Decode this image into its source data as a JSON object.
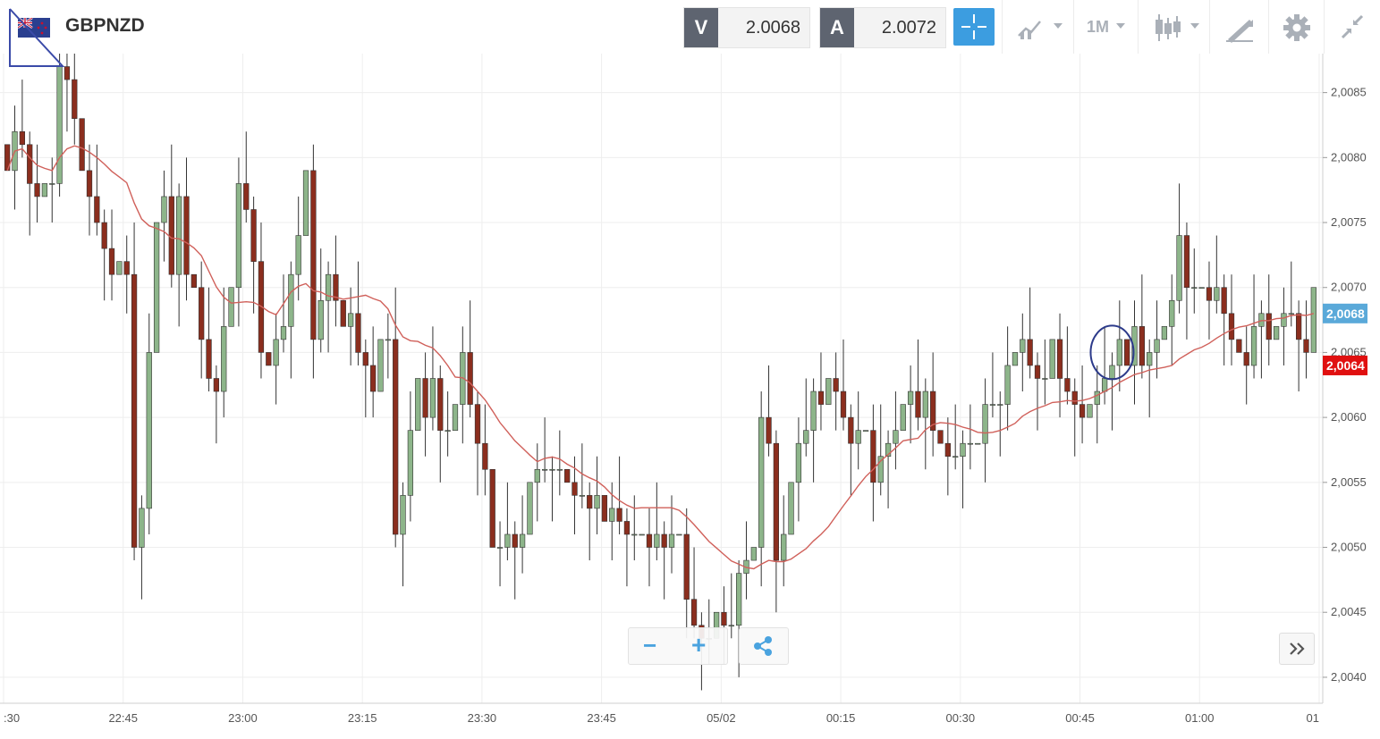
{
  "header": {
    "symbol": "GBPNZD",
    "bid_tag": "V",
    "bid_value": "2.0068",
    "ask_tag": "A",
    "ask_value": "2.0072",
    "timeframe": "1M",
    "accent_color": "#3c9de0"
  },
  "toolbar": {
    "icons": [
      "crosshair-icon",
      "chart-type-icon",
      "timeframe-dropdown",
      "candlestick-icon",
      "drawing-tools-icon",
      "gear-icon",
      "collapse-icon"
    ]
  },
  "chart_data": {
    "type": "candlestick",
    "title": "",
    "xlabel": "",
    "ylabel": "",
    "ylim": [
      2.0038,
      2.0088
    ],
    "grid": true,
    "x_ticks": [
      ":30",
      "22:45",
      "23:00",
      "23:15",
      "23:30",
      "23:45",
      "05/02",
      "00:15",
      "00:30",
      "00:45",
      "01:00",
      "01"
    ],
    "y_ticks": [
      "2,0040",
      "2,0045",
      "2,0050",
      "2,0055",
      "2,0060",
      "2,0065",
      "2,0070",
      "2,0075",
      "2,0080",
      "2,0085"
    ],
    "up_color": "#8db58a",
    "down_color": "#8b2e1e",
    "ma_color": "#d0605a",
    "bid_label": "2,0068",
    "bid_label_color": "#5aa9d9",
    "ma_label": "2,0064",
    "ma_label_color": "#e01010",
    "closes": [
      2.0079,
      2.0082,
      2.0081,
      2.0078,
      2.0077,
      2.0078,
      2.0078,
      2.0087,
      2.0086,
      2.0083,
      2.0079,
      2.0077,
      2.0075,
      2.0073,
      2.0071,
      2.0072,
      2.0071,
      2.005,
      2.0053,
      2.0065,
      2.0075,
      2.0077,
      2.0071,
      2.0077,
      2.0071,
      2.007,
      2.0066,
      2.0063,
      2.0062,
      2.0067,
      2.007,
      2.0078,
      2.0076,
      2.0072,
      2.0065,
      2.0064,
      2.0066,
      2.0067,
      2.0071,
      2.0074,
      2.0079,
      2.0066,
      2.0069,
      2.0071,
      2.0069,
      2.0067,
      2.0068,
      2.0065,
      2.0064,
      2.0062,
      2.0066,
      2.0066,
      2.0051,
      2.0054,
      2.0059,
      2.0063,
      2.006,
      2.0063,
      2.0059,
      2.0059,
      2.0061,
      2.0065,
      2.0061,
      2.0058,
      2.0056,
      2.005,
      2.005,
      2.0051,
      2.005,
      2.0051,
      2.0055,
      2.0056,
      2.0056,
      2.0056,
      2.0056,
      2.0055,
      2.0054,
      2.0054,
      2.0053,
      2.0054,
      2.0052,
      2.0053,
      2.0052,
      2.0051,
      2.0051,
      2.0051,
      2.005,
      2.0051,
      2.005,
      2.0051,
      2.0051,
      2.0046,
      2.0044,
      2.0043,
      2.0043,
      2.0045,
      2.0044,
      2.0044,
      2.0048,
      2.0049,
      2.005,
      2.006,
      2.0058,
      2.0049,
      2.0051,
      2.0055,
      2.0058,
      2.0059,
      2.0062,
      2.0061,
      2.0063,
      2.0062,
      2.006,
      2.0058,
      2.0059,
      2.0059,
      2.0055,
      2.0057,
      2.0058,
      2.0059,
      2.0061,
      2.0062,
      2.006,
      2.0062,
      2.0059,
      2.0058,
      2.0057,
      2.0057,
      2.0058,
      2.0058,
      2.0058,
      2.0061,
      2.0061,
      2.0061,
      2.0064,
      2.0065,
      2.0066,
      2.0064,
      2.0063,
      2.0063,
      2.0066,
      2.0063,
      2.0062,
      2.0061,
      2.006,
      2.0061,
      2.0062,
      2.0063,
      2.0064,
      2.0066,
      2.0064,
      2.0067,
      2.0064,
      2.0065,
      2.0066,
      2.0067,
      2.0069,
      2.0074,
      2.007,
      2.007,
      2.007,
      2.0069,
      2.007,
      2.0068,
      2.0066,
      2.0065,
      2.0064,
      2.0067,
      2.0068,
      2.0066,
      2.0067,
      2.0068,
      2.0068,
      2.0066,
      2.0065,
      2.007
    ]
  },
  "controls": {
    "zoom_out": "−",
    "zoom_in": "+"
  }
}
